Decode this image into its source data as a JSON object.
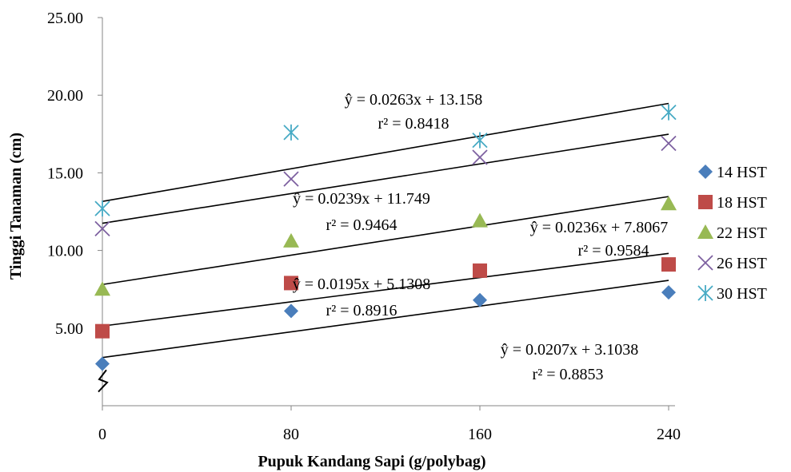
{
  "chart_data": {
    "type": "scatter",
    "xlabel": "Pupuk Kandang Sapi (g/polybag)",
    "ylabel": "Tinggi Tanaman (cm)",
    "x": [
      0,
      80,
      160,
      240
    ],
    "x_tick_labels": [
      "0",
      "80",
      "160",
      "240"
    ],
    "ylim": [
      0,
      25
    ],
    "y_tick_labels": [
      "5.00",
      "10.00",
      "15.00",
      "20.00",
      "25.00"
    ],
    "y_tick_values": [
      5,
      10,
      15,
      20,
      25
    ],
    "y_axis_break": true,
    "grid": false,
    "legend_position": "right",
    "series": [
      {
        "name": "14 HST",
        "marker": "diamond",
        "color": "#4a7ebb",
        "values": [
          2.7,
          6.1,
          6.8,
          7.3
        ],
        "trend": {
          "slope": 0.0207,
          "intercept": 3.1038
        },
        "equation": "ŷ = 0.0207x + 3.1038",
        "r2": "r² = 0.8853"
      },
      {
        "name": "18 HST",
        "marker": "square",
        "color": "#be4b48",
        "values": [
          4.8,
          7.9,
          8.7,
          9.1
        ],
        "trend": {
          "slope": 0.0195,
          "intercept": 5.1308
        },
        "equation": "ŷ = 0.0195x + 5.1308",
        "r2": "r² = 0.8916"
      },
      {
        "name": "22 HST",
        "marker": "triangle",
        "color": "#98b954",
        "values": [
          7.5,
          10.6,
          11.9,
          13.0
        ],
        "trend": {
          "slope": 0.0236,
          "intercept": 7.8067
        },
        "equation": "ŷ = 0.0236x + 7.8067",
        "r2": "r² = 0.9584"
      },
      {
        "name": "26 HST",
        "marker": "x",
        "color": "#7d60a0",
        "values": [
          11.4,
          14.6,
          16.0,
          16.9
        ],
        "trend": {
          "slope": 0.0239,
          "intercept": 11.749
        },
        "equation": "ŷ = 0.0239x + 11.749",
        "r2": "r² = 0.9464"
      },
      {
        "name": "30 HST",
        "marker": "star",
        "color": "#46aac4",
        "values": [
          12.7,
          17.6,
          17.1,
          18.9
        ],
        "trend": {
          "slope": 0.0263,
          "intercept": 13.158
        },
        "equation": "ŷ = 0.0263x + 13.158",
        "r2": "r² = 0.8418"
      }
    ]
  }
}
